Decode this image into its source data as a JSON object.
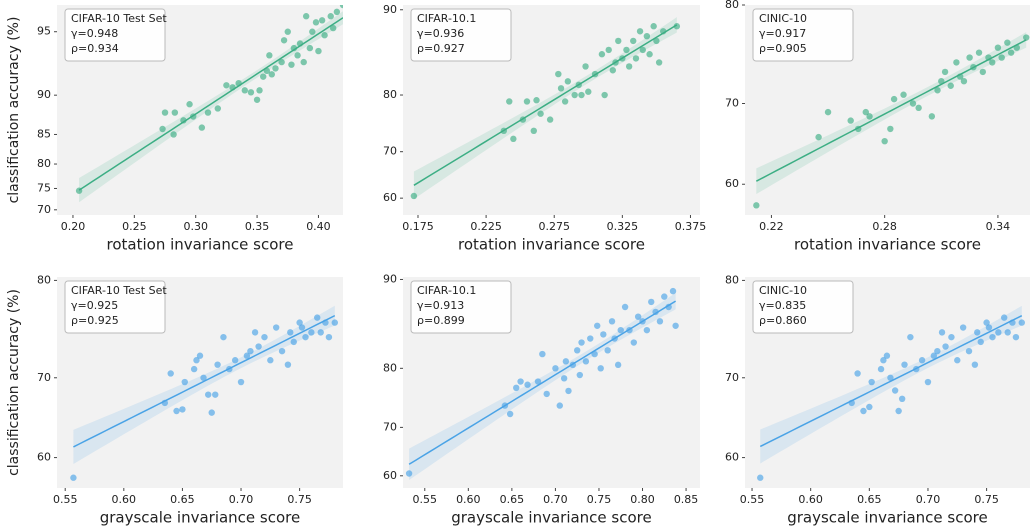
{
  "chart_data": [
    {
      "type": "scatter",
      "annotations": [
        "CIFAR-10 Test Set",
        "γ=0.948",
        "ρ=0.934"
      ],
      "xlabel": "rotation invariance score",
      "ylabel": "classification accuracy (%)",
      "color": "#3cae84",
      "yscale": "logit",
      "xlim": [
        0.187,
        0.42
      ],
      "ylim": [
        68.7,
        96.3
      ],
      "xticks": [
        {
          "value": 0.2,
          "label": "0.20"
        },
        0.25,
        {
          "value": 0.3,
          "label": "0.30"
        },
        0.35,
        {
          "value": 0.4,
          "label": "0.40"
        }
      ],
      "yticks": [
        70,
        75,
        80,
        85,
        90,
        95
      ],
      "x": [
        0.205,
        0.273,
        0.275,
        0.282,
        0.283,
        0.29,
        0.295,
        0.298,
        0.305,
        0.31,
        0.318,
        0.325,
        0.33,
        0.335,
        0.34,
        0.345,
        0.35,
        0.352,
        0.355,
        0.358,
        0.36,
        0.362,
        0.365,
        0.37,
        0.372,
        0.375,
        0.378,
        0.38,
        0.383,
        0.385,
        0.388,
        0.39,
        0.393,
        0.395,
        0.398,
        0.4,
        0.403,
        0.405,
        0.41,
        0.412,
        0.415,
        0.42
      ],
      "values": [
        74.5,
        85.8,
        88.0,
        85.0,
        88.0,
        87.0,
        89.0,
        87.5,
        86.0,
        88.0,
        88.5,
        91.0,
        90.8,
        91.2,
        90.5,
        90.3,
        89.5,
        90.5,
        91.8,
        92.3,
        93.5,
        92.0,
        92.5,
        93.0,
        94.5,
        95.0,
        92.8,
        94.0,
        93.5,
        94.3,
        93.0,
        95.8,
        94.0,
        95.0,
        95.5,
        93.8,
        95.6,
        94.8,
        95.8,
        95.2,
        96.0,
        96.3
      ]
    },
    {
      "type": "scatter",
      "annotations": [
        "CIFAR-10.1",
        "γ=0.936",
        "ρ=0.927"
      ],
      "xlabel": "rotation invariance score",
      "color": "#3cae84",
      "yscale": "logit",
      "xlim": [
        0.164,
        0.382
      ],
      "ylim": [
        56.1,
        90.4
      ],
      "xticks": [
        0.175,
        0.225,
        0.275,
        0.325,
        0.375
      ],
      "yticks": [
        60,
        70,
        80,
        90
      ],
      "x": [
        0.172,
        0.238,
        0.242,
        0.245,
        0.252,
        0.255,
        0.26,
        0.262,
        0.265,
        0.272,
        0.278,
        0.28,
        0.283,
        0.285,
        0.29,
        0.293,
        0.295,
        0.298,
        0.3,
        0.305,
        0.31,
        0.312,
        0.315,
        0.318,
        0.32,
        0.322,
        0.325,
        0.328,
        0.33,
        0.333,
        0.335,
        0.338,
        0.34,
        0.343,
        0.345,
        0.348,
        0.35,
        0.352,
        0.355,
        0.365
      ],
      "values": [
        60.5,
        74.0,
        79.0,
        72.5,
        76.0,
        79.0,
        74.0,
        79.2,
        77.0,
        76.0,
        83.0,
        81.0,
        79.0,
        82.0,
        80.0,
        81.5,
        80.0,
        84.0,
        80.5,
        83.0,
        85.5,
        80.0,
        86.0,
        83.5,
        84.5,
        87.0,
        85.0,
        86.0,
        84.0,
        87.0,
        85.0,
        88.0,
        86.0,
        87.5,
        85.5,
        88.5,
        87.0,
        84.5,
        88.0,
        88.5
      ]
    },
    {
      "type": "scatter",
      "annotations": [
        "CINIC-10",
        "γ=0.917",
        "ρ=0.905"
      ],
      "xlabel": "rotation invariance score",
      "color": "#3cae84",
      "yscale": "logit",
      "xlim": [
        0.206,
        0.357
      ],
      "ylim": [
        55.9,
        80
      ],
      "xticks": [
        0.22,
        0.28,
        0.34
      ],
      "yticks": [
        60,
        70,
        80
      ],
      "x": [
        0.212,
        0.245,
        0.25,
        0.262,
        0.266,
        0.27,
        0.272,
        0.28,
        0.283,
        0.285,
        0.29,
        0.295,
        0.298,
        0.305,
        0.308,
        0.31,
        0.312,
        0.315,
        0.318,
        0.32,
        0.322,
        0.325,
        0.327,
        0.33,
        0.332,
        0.335,
        0.337,
        0.34,
        0.342,
        0.345,
        0.347,
        0.35,
        0.355
      ],
      "values": [
        57.2,
        66.0,
        69.0,
        68.0,
        67.0,
        69.0,
        68.5,
        65.5,
        67.0,
        70.5,
        71.0,
        70.0,
        69.5,
        68.5,
        71.5,
        72.5,
        73.5,
        72.0,
        74.5,
        73.0,
        72.5,
        75.0,
        74.0,
        75.5,
        73.5,
        75.0,
        74.5,
        76.0,
        75.0,
        76.5,
        75.5,
        76.0,
        77.0
      ]
    },
    {
      "type": "scatter",
      "annotations": [
        "CIFAR-10 Test Set",
        "γ=0.925",
        "ρ=0.925"
      ],
      "xlabel": "grayscale invariance score",
      "ylabel": "classification accuracy (%)",
      "color": "#4aa3e6",
      "yscale": "logit",
      "xlim": [
        0.543,
        0.787
      ],
      "ylim": [
        55.9,
        80.3
      ],
      "xticks": [
        0.55,
        {
          "value": 0.6,
          "label": "0.60"
        },
        0.65,
        {
          "value": 0.7,
          "label": "0.70"
        },
        0.75
      ],
      "yticks": [
        60,
        70,
        80
      ],
      "x": [
        0.557,
        0.635,
        0.64,
        0.645,
        0.65,
        0.652,
        0.66,
        0.662,
        0.665,
        0.668,
        0.672,
        0.675,
        0.678,
        0.68,
        0.685,
        0.69,
        0.695,
        0.7,
        0.705,
        0.708,
        0.712,
        0.715,
        0.72,
        0.725,
        0.73,
        0.735,
        0.74,
        0.742,
        0.745,
        0.75,
        0.752,
        0.755,
        0.76,
        0.765,
        0.768,
        0.772,
        0.775,
        0.78
      ],
      "values": [
        57.3,
        67.0,
        70.5,
        66.0,
        66.2,
        69.5,
        71.0,
        72.0,
        72.5,
        70.0,
        68.0,
        65.8,
        68.0,
        71.5,
        74.5,
        71.0,
        72.0,
        69.5,
        72.5,
        73.0,
        75.0,
        73.5,
        74.5,
        72.0,
        75.5,
        73.0,
        71.5,
        75.0,
        74.0,
        76.0,
        75.5,
        74.5,
        75.0,
        76.5,
        75.0,
        76.0,
        74.5,
        76.0
      ]
    },
    {
      "type": "scatter",
      "annotations": [
        "CIFAR-10.1",
        "γ=0.913",
        "ρ=0.899"
      ],
      "xlabel": "grayscale invariance score",
      "color": "#4aa3e6",
      "yscale": "logit",
      "xlim": [
        0.525,
        0.866
      ],
      "ylim": [
        57.3,
        90.2
      ],
      "xticks": [
        0.55,
        {
          "value": 0.6,
          "label": "0.60"
        },
        0.65,
        {
          "value": 0.7,
          "label": "0.70"
        },
        0.75,
        {
          "value": 0.8,
          "label": "0.80"
        },
        0.85
      ],
      "yticks": [
        60,
        70,
        80,
        90
      ],
      "x": [
        0.532,
        0.642,
        0.648,
        0.655,
        0.66,
        0.668,
        0.68,
        0.685,
        0.69,
        0.7,
        0.705,
        0.71,
        0.712,
        0.715,
        0.72,
        0.725,
        0.728,
        0.73,
        0.735,
        0.74,
        0.745,
        0.748,
        0.752,
        0.755,
        0.76,
        0.765,
        0.768,
        0.772,
        0.775,
        0.78,
        0.785,
        0.79,
        0.795,
        0.8,
        0.805,
        0.81,
        0.815,
        0.82,
        0.825,
        0.83,
        0.835,
        0.838
      ],
      "values": [
        60.5,
        74.0,
        72.5,
        77.0,
        78.0,
        77.5,
        78.0,
        82.0,
        76.0,
        80.0,
        74.0,
        78.5,
        81.0,
        76.5,
        80.5,
        82.5,
        79.0,
        83.5,
        81.0,
        84.0,
        82.0,
        85.5,
        80.0,
        84.5,
        82.5,
        86.0,
        84.0,
        80.5,
        85.0,
        87.5,
        85.0,
        83.5,
        86.5,
        86.0,
        85.0,
        88.0,
        87.0,
        86.0,
        88.5,
        87.5,
        89.0,
        85.5
      ]
    },
    {
      "type": "scatter",
      "annotations": [
        "CINIC-10",
        "γ=0.835",
        "ρ=0.860"
      ],
      "xlabel": "grayscale invariance score",
      "color": "#4aa3e6",
      "yscale": "logit",
      "xlim": [
        0.544,
        0.787
      ],
      "ylim": [
        55.9,
        80.3
      ],
      "xticks": [
        0.55,
        {
          "value": 0.6,
          "label": "0.60"
        },
        0.65,
        {
          "value": 0.7,
          "label": "0.70"
        },
        0.75
      ],
      "yticks": [
        60,
        70,
        80
      ],
      "x": [
        0.557,
        0.635,
        0.64,
        0.645,
        0.65,
        0.652,
        0.66,
        0.662,
        0.665,
        0.668,
        0.672,
        0.675,
        0.678,
        0.68,
        0.685,
        0.69,
        0.695,
        0.7,
        0.705,
        0.708,
        0.712,
        0.715,
        0.72,
        0.725,
        0.73,
        0.735,
        0.74,
        0.742,
        0.745,
        0.75,
        0.752,
        0.755,
        0.76,
        0.765,
        0.768,
        0.772,
        0.775,
        0.78
      ],
      "values": [
        57.3,
        67.0,
        70.5,
        66.0,
        66.5,
        69.5,
        71.0,
        72.0,
        72.5,
        70.0,
        68.5,
        66.0,
        67.5,
        71.5,
        74.5,
        71.0,
        72.0,
        69.5,
        72.5,
        73.0,
        75.0,
        73.5,
        74.5,
        72.0,
        75.5,
        73.0,
        71.5,
        75.0,
        74.0,
        76.0,
        75.5,
        74.5,
        75.0,
        76.5,
        75.0,
        76.0,
        74.5,
        76.0
      ]
    }
  ]
}
